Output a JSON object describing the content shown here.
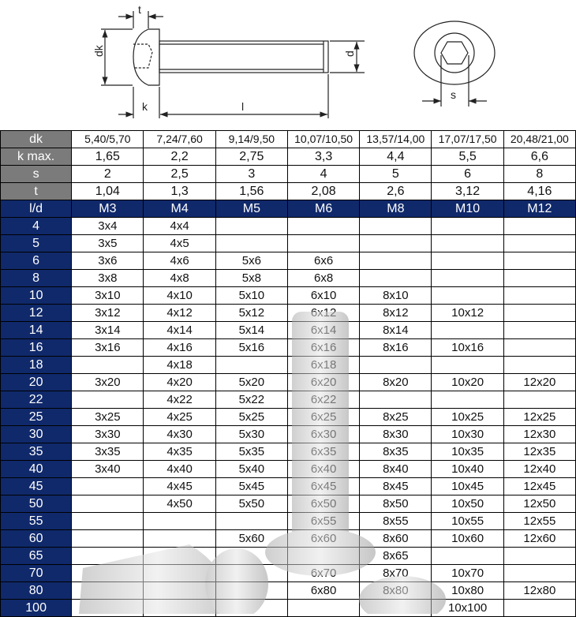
{
  "drawing": {
    "labels": {
      "t": "t",
      "dk": "dk",
      "d": "d",
      "k": "k",
      "l": "l",
      "s": "s"
    }
  },
  "colors": {
    "spec_label_bg": "#7b7b7b",
    "header_bg": "#10296b"
  },
  "specs": [
    {
      "label": "dk",
      "values": [
        "5,40/5,70",
        "7,24/7,60",
        "9,14/9,50",
        "10,07/10,50",
        "13,57/14,00",
        "17,07/17,50",
        "20,48/21,00"
      ]
    },
    {
      "label": "k max.",
      "values": [
        "1,65",
        "2,2",
        "2,75",
        "3,3",
        "4,4",
        "5,5",
        "6,6"
      ]
    },
    {
      "label": "s",
      "values": [
        "2",
        "2,5",
        "3",
        "4",
        "5",
        "6",
        "8"
      ]
    },
    {
      "label": "t",
      "values": [
        "1,04",
        "1,3",
        "1,56",
        "2,08",
        "2,6",
        "3,12",
        "4,16"
      ]
    }
  ],
  "header": {
    "label": "l/d",
    "sizes": [
      "M3",
      "M4",
      "M5",
      "M6",
      "M8",
      "M10",
      "M12"
    ]
  },
  "rows": [
    {
      "l": "4",
      "cells": [
        "3x4",
        "4x4",
        "",
        "",
        "",
        "",
        ""
      ]
    },
    {
      "l": "5",
      "cells": [
        "3x5",
        "4x5",
        "",
        "",
        "",
        "",
        ""
      ]
    },
    {
      "l": "6",
      "cells": [
        "3x6",
        "4x6",
        "5x6",
        "6x6",
        "",
        "",
        ""
      ]
    },
    {
      "l": "8",
      "cells": [
        "3x8",
        "4x8",
        "5x8",
        "6x8",
        "",
        "",
        ""
      ]
    },
    {
      "l": "10",
      "cells": [
        "3x10",
        "4x10",
        "5x10",
        "6x10",
        "8x10",
        "",
        ""
      ]
    },
    {
      "l": "12",
      "cells": [
        "3x12",
        "4x12",
        "5x12",
        "6x12",
        "8x12",
        "10x12",
        ""
      ]
    },
    {
      "l": "14",
      "cells": [
        "3x14",
        "4x14",
        "5x14",
        "6x14",
        "8x14",
        "",
        ""
      ]
    },
    {
      "l": "16",
      "cells": [
        "3x16",
        "4x16",
        "5x16",
        "6x16",
        "8x16",
        "10x16",
        ""
      ]
    },
    {
      "l": "18",
      "cells": [
        "",
        "4x18",
        "",
        "6x18",
        "",
        "",
        ""
      ]
    },
    {
      "l": "20",
      "cells": [
        "3x20",
        "4x20",
        "5x20",
        "6x20",
        "8x20",
        "10x20",
        "12x20"
      ]
    },
    {
      "l": "22",
      "cells": [
        "",
        "4x22",
        "5x22",
        "6x22",
        "",
        "",
        ""
      ]
    },
    {
      "l": "25",
      "cells": [
        "3x25",
        "4x25",
        "5x25",
        "6x25",
        "8x25",
        "10x25",
        "12x25"
      ]
    },
    {
      "l": "30",
      "cells": [
        "3x30",
        "4x30",
        "5x30",
        "6x30",
        "8x30",
        "10x30",
        "12x30"
      ]
    },
    {
      "l": "35",
      "cells": [
        "3x35",
        "4x35",
        "5x35",
        "6x35",
        "8x35",
        "10x35",
        "12x35"
      ]
    },
    {
      "l": "40",
      "cells": [
        "3x40",
        "4x40",
        "5x40",
        "6x40",
        "8x40",
        "10x40",
        "12x40"
      ]
    },
    {
      "l": "45",
      "cells": [
        "",
        "4x45",
        "5x45",
        "6x45",
        "8x45",
        "10x45",
        "12x45"
      ]
    },
    {
      "l": "50",
      "cells": [
        "",
        "4x50",
        "5x50",
        "6x50",
        "8x50",
        "10x50",
        "12x50"
      ]
    },
    {
      "l": "55",
      "cells": [
        "",
        "",
        "",
        "6x55",
        "8x55",
        "10x55",
        "12x55"
      ]
    },
    {
      "l": "60",
      "cells": [
        "",
        "",
        "5x60",
        "6x60",
        "8x60",
        "10x60",
        "12x60"
      ]
    },
    {
      "l": "65",
      "cells": [
        "",
        "",
        "",
        "",
        "8x65",
        "",
        ""
      ]
    },
    {
      "l": "70",
      "cells": [
        "",
        "",
        "",
        "6x70",
        "8x70",
        "10x70",
        ""
      ]
    },
    {
      "l": "80",
      "cells": [
        "",
        "",
        "",
        "6x80",
        "8x80",
        "10x80",
        "12x80"
      ]
    },
    {
      "l": "100",
      "cells": [
        "",
        "",
        "",
        "",
        "",
        "10x100",
        ""
      ]
    }
  ]
}
